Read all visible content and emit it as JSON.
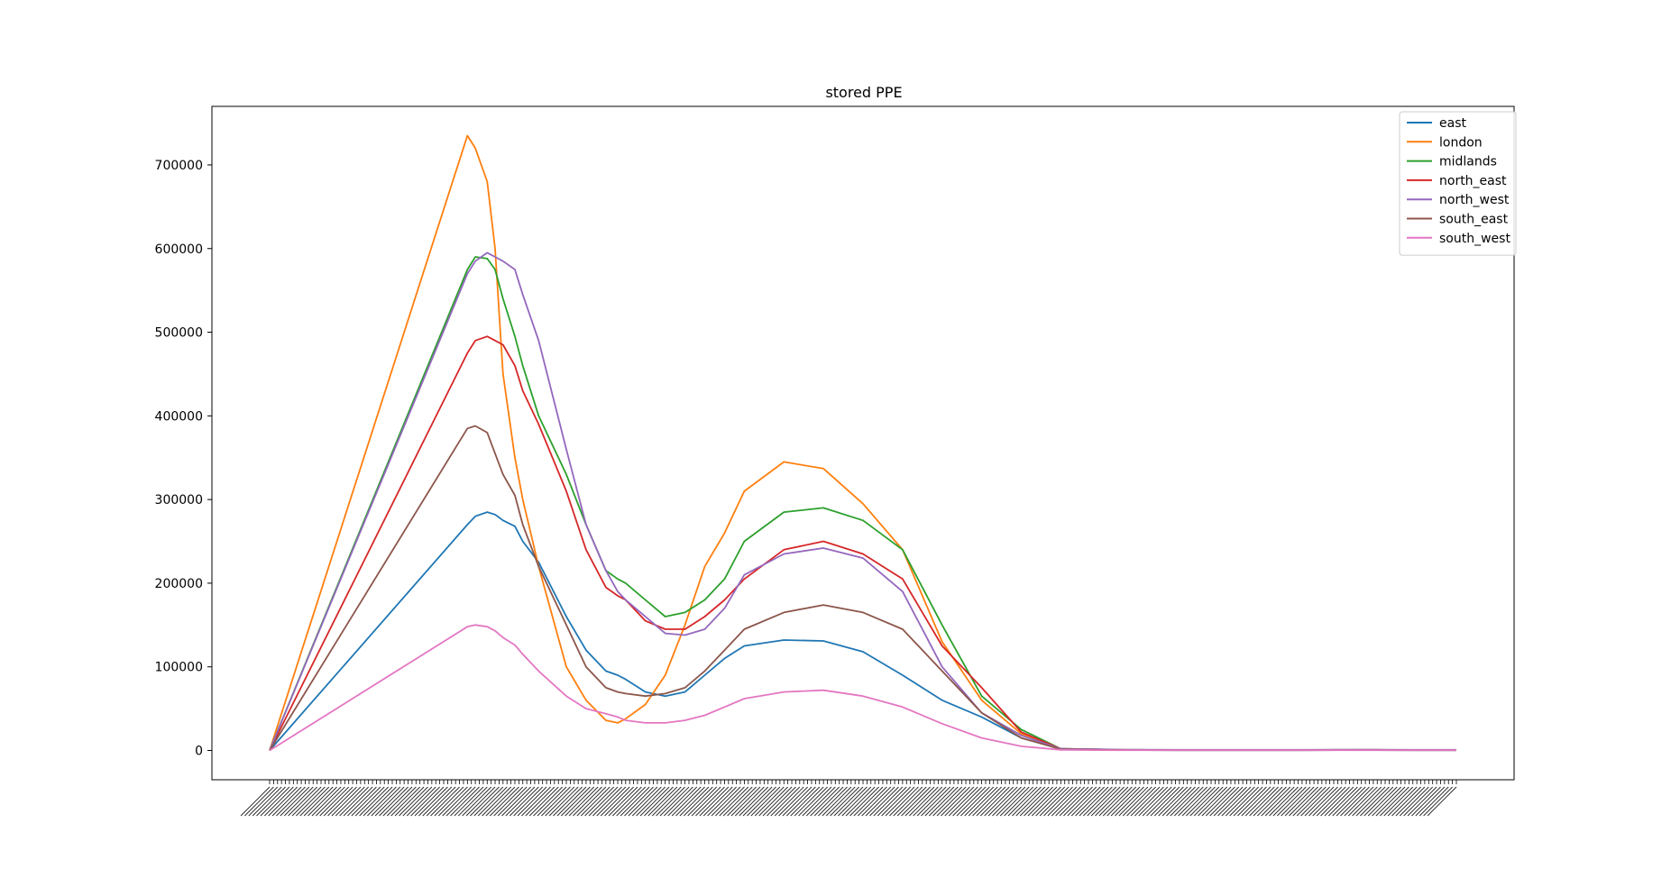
{
  "chart_data": {
    "type": "line",
    "title": "stored PPE",
    "xlabel": "",
    "ylabel": "",
    "ylim": [
      -35000,
      770000
    ],
    "yticks": [
      0,
      100000,
      200000,
      300000,
      400000,
      500000,
      600000,
      700000
    ],
    "ytick_labels": [
      "0",
      "100000",
      "200000",
      "300000",
      "400000",
      "500000",
      "600000",
      "700000"
    ],
    "x_tick_labels_note": "dense unreadable date-like labels rotated ~45° on every index",
    "grid": false,
    "legend": "top-right",
    "x": [
      0,
      50,
      52,
      55,
      57,
      59,
      62,
      64,
      68,
      75,
      80,
      85,
      88,
      90,
      95,
      100,
      105,
      110,
      115,
      120,
      130,
      140,
      150,
      160,
      170,
      180,
      190,
      200,
      210,
      215,
      220,
      230,
      240,
      250,
      260,
      270,
      275,
      278,
      290,
      300
    ],
    "series": [
      {
        "name": "east",
        "color": "#1f77b4",
        "values": [
          0,
          270000,
          280000,
          285000,
          282000,
          275000,
          268000,
          250000,
          225000,
          160000,
          120000,
          95000,
          90000,
          85000,
          70000,
          65000,
          70000,
          90000,
          110000,
          125000,
          132000,
          131000,
          118000,
          90000,
          60000,
          40000,
          15000,
          2000,
          800,
          500,
          500,
          400,
          400,
          400,
          400,
          500,
          500,
          500,
          400,
          400
        ]
      },
      {
        "name": "london",
        "color": "#ff7f0e",
        "values": [
          0,
          735000,
          720000,
          680000,
          600000,
          450000,
          350000,
          300000,
          220000,
          100000,
          60000,
          36000,
          33000,
          38000,
          55000,
          90000,
          150000,
          220000,
          260000,
          310000,
          345000,
          337000,
          295000,
          240000,
          130000,
          60000,
          20000,
          1000,
          1000,
          800,
          500,
          500,
          500,
          500,
          500,
          500,
          800,
          800,
          500,
          500
        ]
      },
      {
        "name": "midlands",
        "color": "#2ca02c",
        "values": [
          0,
          575000,
          590000,
          588000,
          575000,
          540000,
          495000,
          460000,
          400000,
          330000,
          270000,
          215000,
          205000,
          200000,
          180000,
          160000,
          165000,
          180000,
          205000,
          250000,
          285000,
          290000,
          275000,
          240000,
          150000,
          65000,
          25000,
          2000,
          1200,
          800,
          800,
          500,
          500,
          500,
          500,
          800,
          800,
          800,
          500,
          500
        ]
      },
      {
        "name": "north_east",
        "color": "#d62728",
        "values": [
          0,
          475000,
          490000,
          495000,
          490000,
          485000,
          460000,
          430000,
          390000,
          310000,
          240000,
          195000,
          185000,
          180000,
          155000,
          145000,
          145000,
          160000,
          180000,
          205000,
          240000,
          250000,
          235000,
          205000,
          125000,
          75000,
          22000,
          2000,
          1200,
          800,
          600,
          500,
          500,
          500,
          500,
          600,
          600,
          600,
          500,
          500
        ]
      },
      {
        "name": "north_west",
        "color": "#9467bd",
        "values": [
          0,
          570000,
          585000,
          595000,
          590000,
          585000,
          575000,
          545000,
          490000,
          360000,
          270000,
          215000,
          190000,
          180000,
          160000,
          140000,
          138000,
          145000,
          170000,
          210000,
          235000,
          242000,
          230000,
          190000,
          100000,
          45000,
          18000,
          2000,
          1500,
          1000,
          1000,
          800,
          800,
          800,
          800,
          1000,
          1000,
          1000,
          800,
          800
        ]
      },
      {
        "name": "south_east",
        "color": "#8c564b",
        "values": [
          0,
          385000,
          388000,
          380000,
          355000,
          330000,
          305000,
          270000,
          220000,
          150000,
          100000,
          75000,
          70000,
          68000,
          65000,
          68000,
          75000,
          95000,
          120000,
          145000,
          165000,
          174000,
          165000,
          145000,
          95000,
          45000,
          15000,
          1500,
          800,
          600,
          500,
          400,
          400,
          400,
          400,
          500,
          500,
          500,
          400,
          400
        ]
      },
      {
        "name": "south_west",
        "color": "#e377c2",
        "values": [
          0,
          148000,
          150000,
          148000,
          143000,
          135000,
          126000,
          115000,
          95000,
          65000,
          50000,
          44000,
          40000,
          36000,
          33000,
          33000,
          36000,
          42000,
          52000,
          62000,
          70000,
          72000,
          65000,
          52000,
          32000,
          15000,
          5000,
          800,
          500,
          400,
          300,
          300,
          300,
          300,
          300,
          300,
          300,
          300,
          300,
          300
        ]
      }
    ]
  }
}
